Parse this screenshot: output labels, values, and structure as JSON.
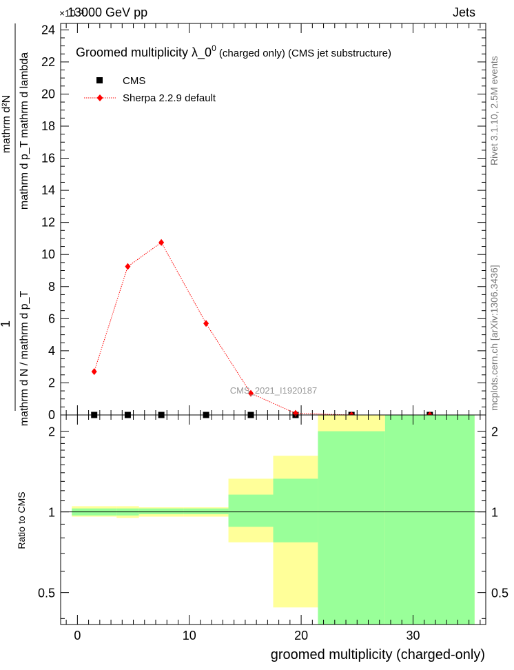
{
  "header": {
    "energy": "13000 GeV pp",
    "category": "Jets",
    "exponent": "×10⁻³"
  },
  "side_labels": {
    "rivet": "Rivet 3.1.10,  2.5M events",
    "mcplots": "mcplots.cern.ch [arXiv:1306.3436]"
  },
  "watermark": "CMS_2021_I1920187",
  "chart_data": [
    {
      "type": "scatter",
      "title": "Groomed multiplicity  λ_0⁰ (charged only) (CMS jet substructure)",
      "title_parts": {
        "main": "Groomed multiplicity  λ_0",
        "sup": "0",
        "tail": " (charged only) (CMS jet substructure)"
      },
      "ylabel_parts": {
        "numerator": "1",
        "denominator": "mathrm d N / mathrm d p_T",
        "deriv_numerator": "mathrm d²N",
        "deriv_denominator": "mathrm d p_T mathrm d lambda"
      },
      "ylim": [
        0,
        24.4
      ],
      "yscale_note": "×10⁻³",
      "yticks": [
        0,
        2,
        4,
        6,
        8,
        10,
        12,
        14,
        16,
        18,
        20,
        22,
        24
      ],
      "xlim": [
        -1.5,
        36.5
      ],
      "legend": {
        "placement": "top-left",
        "entries": [
          "CMS",
          "Sherpa 2.2.9 default"
        ]
      },
      "series": [
        {
          "name": "CMS",
          "color": "#000000",
          "x": [
            1.5,
            4.5,
            7.5,
            11.5,
            15.5,
            19.5,
            24.5,
            31.5
          ],
          "values": [
            0.0,
            0.0,
            0.0,
            0.0,
            0.0,
            0.0,
            0.0,
            0.0
          ]
        },
        {
          "name": "Sherpa 2.2.9 default",
          "color": "#ff0000",
          "x": [
            1.5,
            4.5,
            7.5,
            11.5,
            15.5,
            19.5,
            24.5,
            31.5
          ],
          "values": [
            2.7,
            9.25,
            10.75,
            5.7,
            1.35,
            0.1,
            0.0,
            0.0
          ]
        }
      ]
    },
    {
      "type": "area",
      "ylabel": "Ratio to CMS",
      "xlabel": "groomed multiplicity (charged-only)",
      "xlim": [
        -1.5,
        36.5
      ],
      "ylim": [
        0.38,
        2.3
      ],
      "xticks": [
        0,
        10,
        20,
        30
      ],
      "yticks": [
        0.5,
        1,
        2
      ],
      "reference_line": 1,
      "bands": {
        "outer_color": "#ffff99",
        "inner_color": "#99ff99",
        "bins": [
          {
            "x0": -0.5,
            "x1": 3.5,
            "outer": [
              0.96,
              1.05
            ],
            "inner": [
              0.97,
              1.03
            ]
          },
          {
            "x0": 3.5,
            "x1": 5.5,
            "outer": [
              0.95,
              1.05
            ],
            "inner": [
              0.97,
              1.03
            ]
          },
          {
            "x0": 5.5,
            "x1": 9.5,
            "outer": [
              0.96,
              1.04
            ],
            "inner": [
              0.98,
              1.03
            ]
          },
          {
            "x0": 9.5,
            "x1": 13.5,
            "outer": [
              0.96,
              1.04
            ],
            "inner": [
              0.98,
              1.03
            ]
          },
          {
            "x0": 13.5,
            "x1": 17.5,
            "outer": [
              0.77,
              1.33
            ],
            "inner": [
              0.88,
              1.16
            ]
          },
          {
            "x0": 17.5,
            "x1": 21.5,
            "outer": [
              0.44,
              1.62
            ],
            "inner": [
              0.77,
              1.33
            ]
          },
          {
            "x0": 21.5,
            "x1": 27.5,
            "outer": [
              0.38,
              2.3
            ],
            "inner": [
              0.38,
              2.0
            ]
          },
          {
            "x0": 27.5,
            "x1": 35.5,
            "outer": [
              0.38,
              2.3
            ],
            "inner": [
              0.38,
              2.3
            ]
          }
        ]
      }
    }
  ]
}
